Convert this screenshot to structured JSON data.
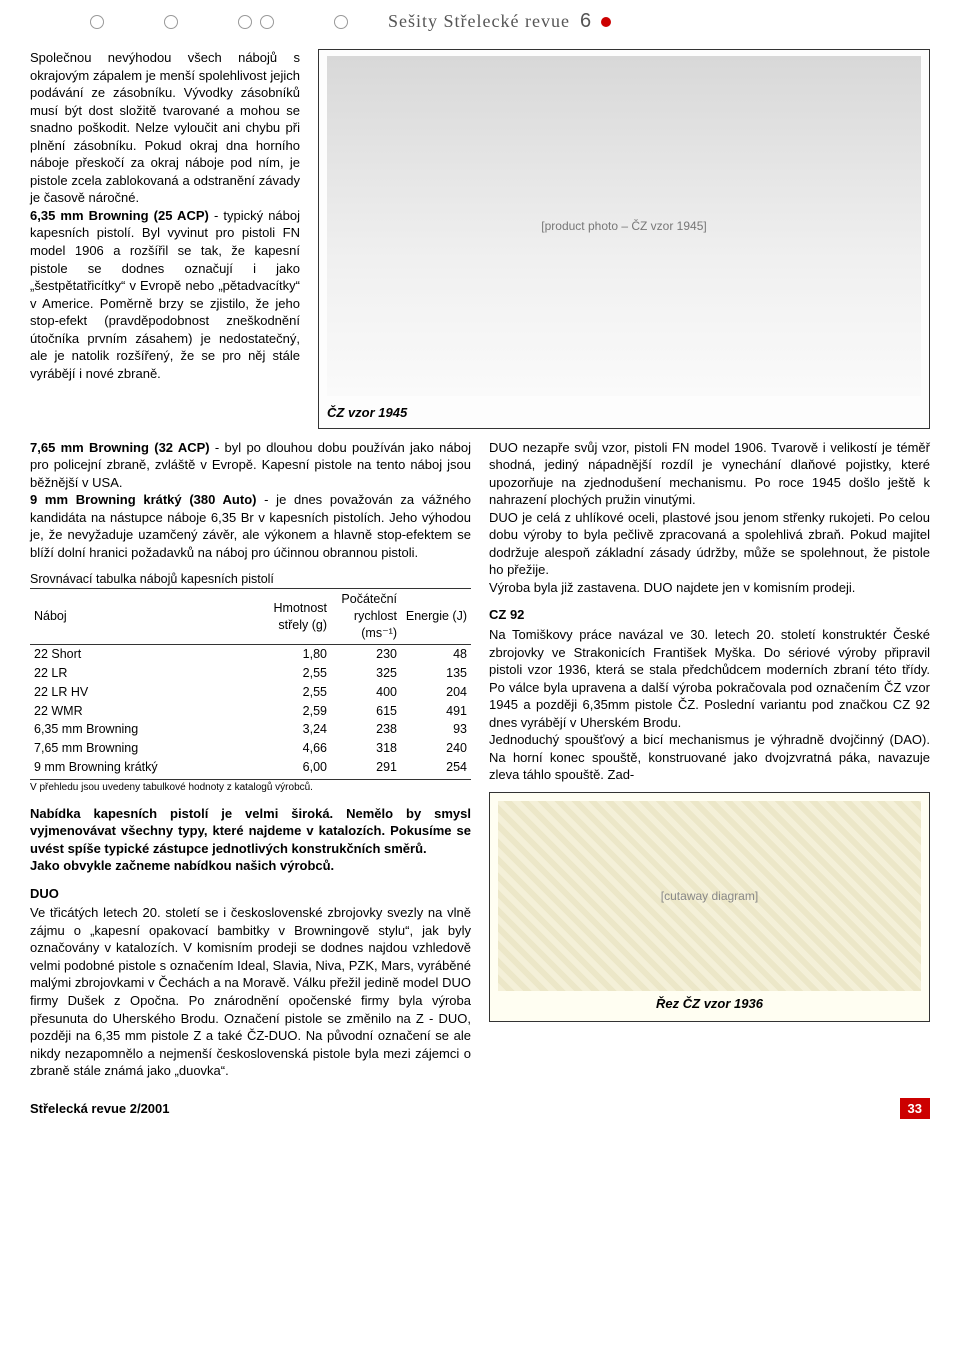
{
  "header": {
    "title": "Sešity Střelecké revue",
    "issue": "6"
  },
  "left_column": {
    "p1": "Společnou nevýhodou všech nábojů s okrajovým zápalem je menší spolehlivost jejich podávání ze zásobníku. Vývodky zásobníků musí být dost složitě tvarované a mohou se snadno poškodit. Nelze vyloučit ani chybu při plnění zásobníku. Pokud okraj dna horního náboje přeskočí za okraj náboje pod ním, je pistole zcela zablokovaná a odstranění závady je časově náročné.",
    "p2_bold": "6,35 mm Browning (25 ACP)",
    "p2_rest": " - typický náboj kapesních pistolí. Byl vyvinut pro pistoli FN model 1906 a rozšířil se tak, že kapesní pistole se dodnes označují i jako „šestpětatřicítky“ v Evropě nebo „pětadvacítky“ v Americe. Poměrně brzy se zjistilo, že jeho stop-efekt (pravděpodobnost zneškodnění útočníka prvním zásahem) je nedostatečný, ale je natolik rozšířený, že se pro něj stále vyrábějí i nové zbraně."
  },
  "photo1": {
    "label": "[product photo – ČZ vzor 1945]",
    "caption": "ČZ vzor 1945"
  },
  "mid_left": {
    "p1_bold": "7,65 mm Browning (32 ACP)",
    "p1_rest": " - byl po dlouhou dobu používán jako náboj pro policejní zbraně, zvláště v Evropě. Kapesní pistole na tento náboj jsou běžnější v USA.",
    "p2_bold": "9 mm Browning krátký (380 Auto)",
    "p2_rest": " - je dnes považován za vážného kandidáta na nástupce náboje 6,35 Br v kapesních pistolích. Jeho výhodou je, že nevyžaduje uzamčený závěr, ale výkonem a hlavně stop-efektem se blíží dolní hranici požadavků na náboj pro účinnou obrannou pistoli.",
    "table_title": "Srovnávací tabulka nábojů kapesních pistolí",
    "table": {
      "columns": {
        "c1": "Náboj",
        "c2": "Hmotnost střely (g)",
        "c3": "Počáteční rychlost (ms⁻¹)",
        "c4": "Energie (J)"
      },
      "rows": [
        {
          "name": "22 Short",
          "mass": "1,80",
          "vel": "230",
          "energy": "48"
        },
        {
          "name": "22 LR",
          "mass": "2,55",
          "vel": "325",
          "energy": "135"
        },
        {
          "name": "22 LR HV",
          "mass": "2,55",
          "vel": "400",
          "energy": "204"
        },
        {
          "name": "22 WMR",
          "mass": "2,59",
          "vel": "615",
          "energy": "491"
        },
        {
          "name": "6,35 mm Browning",
          "mass": "3,24",
          "vel": "238",
          "energy": "93"
        },
        {
          "name": "7,65 mm Browning",
          "mass": "4,66",
          "vel": "318",
          "energy": "240"
        },
        {
          "name": "9 mm Browning krátký",
          "mass": "6,00",
          "vel": "291",
          "energy": "254"
        }
      ],
      "note": "V přehledu jsou uvedeny tabulkové hodnoty z katalogů výrobců."
    },
    "p3": "Nabídka kapesních pistolí je velmi široká. Nemělo by smysl vyjmenovávat všechny typy, které najdeme v katalozích. Pokusíme se uvést spíše typické zástupce jednotlivých konstrukčních směrů.",
    "p4": "Jako obvykle začneme nabídkou našich výrobců.",
    "duo_heading": "DUO",
    "duo_text": "Ve třicátých letech 20. století se i československé zbrojovky svezly na vlně zájmu o „kapesní opakovací bambitky v Browningově stylu“, jak byly označovány v katalozích. V komisním prodeji se dodnes najdou vzhledově velmi podobné pistole s označením Ideal, Slavia, Niva, PZK, Mars, vyráběné malými zbrojovkami v Čechách a na Moravě. Válku přežil jedině model DUO firmy Dušek z Opočna. Po znárodnění opočenské firmy byla výroba přesunuta do Uherského Brodu. Označení pistole se změnilo na Z - DUO, později na 6,35 mm pistole Z a také ČZ-DUO. Na původní označení se ale nikdy nezapomnělo a nejmenší československá pistole byla mezi zájemci o zbraně stále známá jako „duovka“."
  },
  "mid_right": {
    "p1": "DUO nezapře svůj vzor, pistoli FN model 1906. Tvarově i velikostí je téměř shodná, jediný nápadnější rozdíl je vynechání dlaňové pojistky, které upozorňuje na zjednodušení mechanismu. Po roce 1945 došlo ještě k nahrazení plochých pružin vinutými.",
    "p2": "DUO je celá z uhlíkové oceli, plastové jsou jenom střenky rukojeti. Po celou dobu výroby to byla pečlivě zpracovaná a spolehlivá zbraň. Pokud majitel dodržuje alespoň základní zásady údržby, může se spolehnout, že pistole ho přežije.",
    "p3": "Výroba byla již zastavena. DUO najdete jen v komisním prodeji.",
    "cz92_heading": "CZ 92",
    "cz92_p1": "Na Tomiškovy práce navázal ve 30. letech 20. století konstruktér České zbrojovky ve Strakonicích František Myška. Do sériové výroby připravil pistoli vzor 1936, která se stala předchůdcem moderních zbraní této třídy. Po válce byla upravena a další výroba pokračovala pod označením ČZ vzor 1945 a později 6,35mm pistole ČZ. Poslední variantu pod značkou CZ 92 dnes vyrábějí v Uherském Brodu.",
    "cz92_p2": "Jednoduchý spoušťový a bicí mechanismus je výhradně dvojčinný (DAO). Na horní konec spouště, konstruované jako dvojzvratná páka, navazuje zleva táhlo spouště. Zad-"
  },
  "diagram": {
    "label": "[cutaway diagram]",
    "caption": "Řez ČZ vzor 1936"
  },
  "footer": {
    "left": "Střelecká revue 2/2001",
    "page": "33"
  },
  "colors": {
    "accent": "#cc0000",
    "rule": "#333333",
    "diagram_bg": "#fffef2"
  }
}
